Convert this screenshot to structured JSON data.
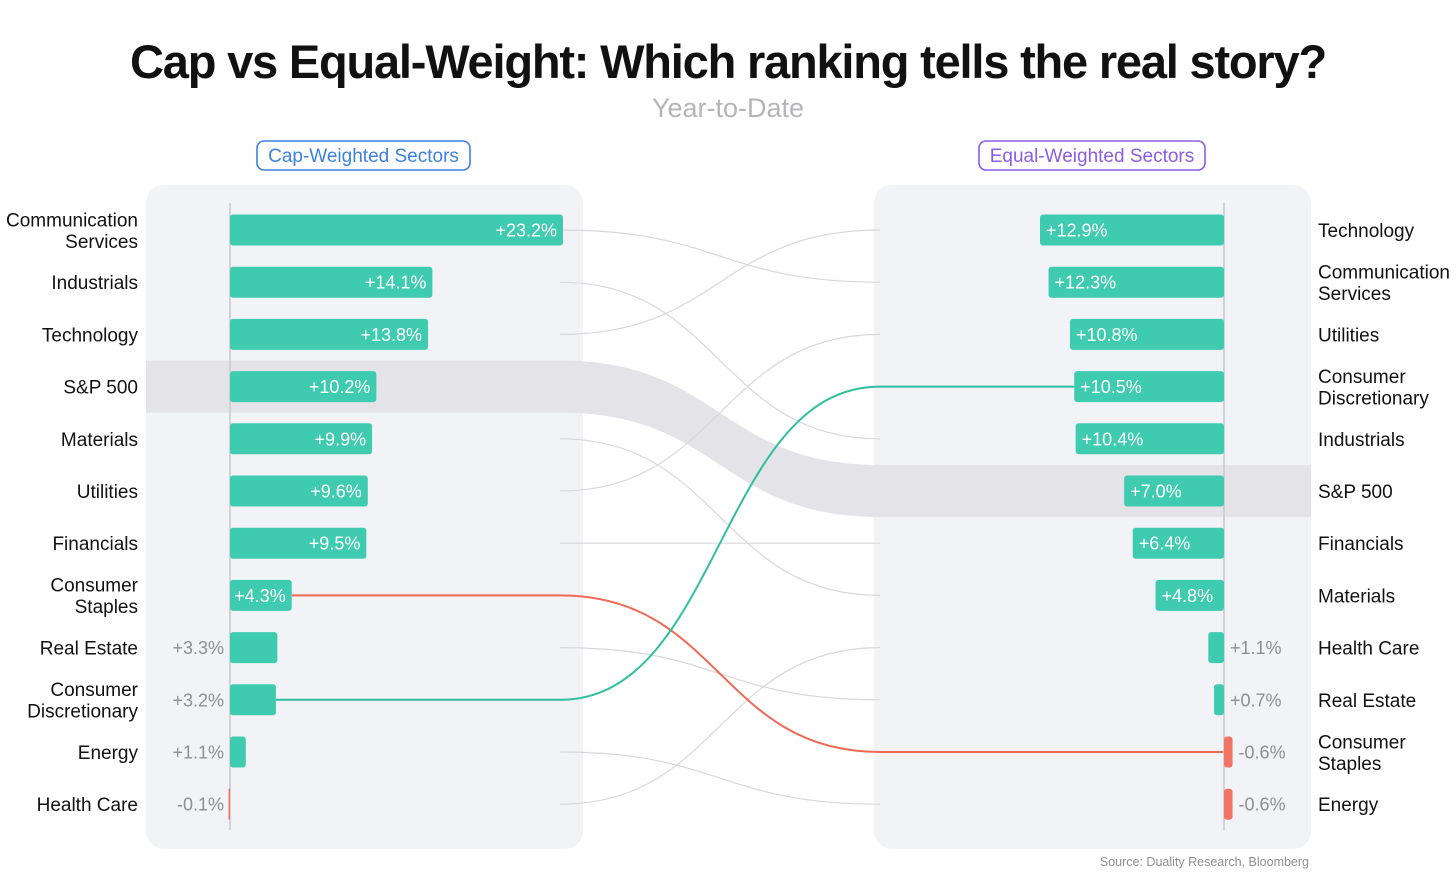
{
  "title": "Cap vs Equal-Weight: Which ranking tells the real story?",
  "subtitle": "Year-to-Date",
  "source": "Source: Duality Research, Bloomberg",
  "colors": {
    "positive": "#3ECBB0",
    "negative": "#F07565",
    "highlight_up": "#2DBF9E",
    "highlight_down": "#EE6A55",
    "cap_header": "#3B82E0",
    "equal_header": "#8B5CE6",
    "panel": "#F2F3F7",
    "benchmark_band": "#E3E3E8",
    "connector": "#D8D8DC"
  },
  "chart_data": {
    "type": "bar",
    "title": "Cap vs Equal-Weight: Which ranking tells the real story?",
    "subtitle": "Year-to-Date",
    "unit": "%",
    "benchmark": "S&P 500",
    "highlighted": [
      "Consumer Discretionary",
      "Consumer Staples"
    ],
    "left": {
      "header": "Cap-Weighted Sectors",
      "categories": [
        {
          "key": "Communication Services",
          "lines": [
            "Communication",
            "Services"
          ],
          "value": 23.2,
          "label": "+23.2%"
        },
        {
          "key": "Industrials",
          "lines": [
            "Industrials"
          ],
          "value": 14.1,
          "label": "+14.1%"
        },
        {
          "key": "Technology",
          "lines": [
            "Technology"
          ],
          "value": 13.8,
          "label": "+13.8%"
        },
        {
          "key": "S&P 500",
          "lines": [
            "S&P 500"
          ],
          "value": 10.2,
          "label": "+10.2%"
        },
        {
          "key": "Materials",
          "lines": [
            "Materials"
          ],
          "value": 9.9,
          "label": "+9.9%"
        },
        {
          "key": "Utilities",
          "lines": [
            "Utilities"
          ],
          "value": 9.6,
          "label": "+9.6%"
        },
        {
          "key": "Financials",
          "lines": [
            "Financials"
          ],
          "value": 9.5,
          "label": "+9.5%"
        },
        {
          "key": "Consumer Staples",
          "lines": [
            "Consumer",
            "Staples"
          ],
          "value": 4.3,
          "label": "+4.3%"
        },
        {
          "key": "Real Estate",
          "lines": [
            "Real Estate"
          ],
          "value": 3.3,
          "label": "+3.3%"
        },
        {
          "key": "Consumer Discretionary",
          "lines": [
            "Consumer",
            "Discretionary"
          ],
          "value": 3.2,
          "label": "+3.2%"
        },
        {
          "key": "Energy",
          "lines": [
            "Energy"
          ],
          "value": 1.1,
          "label": "+1.1%"
        },
        {
          "key": "Health Care",
          "lines": [
            "Health Care"
          ],
          "value": -0.1,
          "label": "-0.1%"
        }
      ]
    },
    "right": {
      "header": "Equal-Weighted Sectors",
      "categories": [
        {
          "key": "Technology",
          "lines": [
            "Technology"
          ],
          "value": 12.9,
          "label": "+12.9%"
        },
        {
          "key": "Communication Services",
          "lines": [
            "Communication",
            "Services"
          ],
          "value": 12.3,
          "label": "+12.3%"
        },
        {
          "key": "Utilities",
          "lines": [
            "Utilities"
          ],
          "value": 10.8,
          "label": "+10.8%"
        },
        {
          "key": "Consumer Discretionary",
          "lines": [
            "Consumer",
            "Discretionary"
          ],
          "value": 10.5,
          "label": "+10.5%"
        },
        {
          "key": "Industrials",
          "lines": [
            "Industrials"
          ],
          "value": 10.4,
          "label": "+10.4%"
        },
        {
          "key": "S&P 500",
          "lines": [
            "S&P 500"
          ],
          "value": 7.0,
          "label": "+7.0%"
        },
        {
          "key": "Financials",
          "lines": [
            "Financials"
          ],
          "value": 6.4,
          "label": "+6.4%"
        },
        {
          "key": "Materials",
          "lines": [
            "Materials"
          ],
          "value": 4.8,
          "label": "+4.8%"
        },
        {
          "key": "Health Care",
          "lines": [
            "Health Care"
          ],
          "value": 1.1,
          "label": "+1.1%"
        },
        {
          "key": "Real Estate",
          "lines": [
            "Real Estate"
          ],
          "value": 0.7,
          "label": "+0.7%"
        },
        {
          "key": "Consumer Staples",
          "lines": [
            "Consumer",
            "Staples"
          ],
          "value": -0.6,
          "label": "-0.6%"
        },
        {
          "key": "Energy",
          "lines": [
            "Energy"
          ],
          "value": -0.6,
          "label": "-0.6%"
        }
      ]
    }
  }
}
